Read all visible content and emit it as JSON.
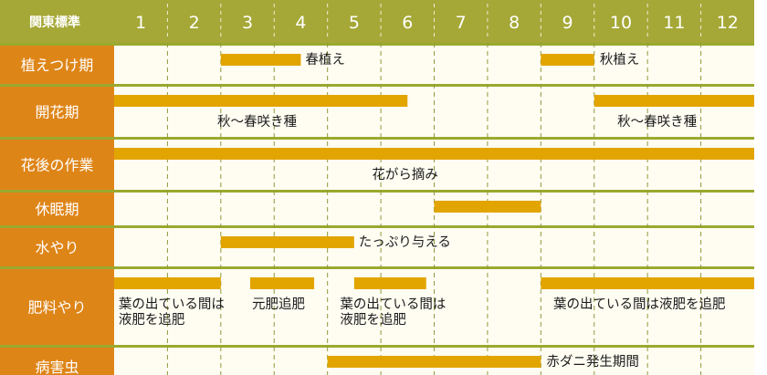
{
  "chart_data": {
    "type": "gantt",
    "corner_label": "関東標準",
    "x_unit": "month",
    "months": [
      "1",
      "2",
      "3",
      "4",
      "5",
      "6",
      "7",
      "8",
      "9",
      "10",
      "11",
      "12"
    ],
    "colors": {
      "header_bg": "#a5a836",
      "header_text": "#ffffff",
      "row_label_bg": "#de8518",
      "row_label_text": "#ffffff",
      "bar": "#e2a500",
      "row_bg": "#fffdf2",
      "separator": "#9aa92e",
      "grid": "#8d9a3a"
    },
    "rows": [
      {
        "label": "植えつけ期",
        "bars": [
          {
            "start": 3,
            "end": 4.5
          },
          {
            "start": 9,
            "end": 10
          }
        ],
        "annotations": [
          {
            "text": "春植え",
            "at_month": 4.55,
            "line": 0
          },
          {
            "text": "秋植え",
            "at_month": 10.07,
            "line": 0
          }
        ]
      },
      {
        "label": "開花期",
        "bars": [
          {
            "start": 1,
            "end": 6.5
          },
          {
            "start": 10,
            "end": 13
          }
        ],
        "annotations": [
          {
            "text": "秋～春咲き種",
            "at_month": 2.9,
            "line": 1
          },
          {
            "text": "秋～春咲き種",
            "at_month": 10.4,
            "line": 1
          }
        ]
      },
      {
        "label": "花後の作業",
        "bars": [
          {
            "start": 1,
            "end": 13
          }
        ],
        "annotations": [
          {
            "text": "花がら摘み",
            "at_month": 5.8,
            "line": 1
          }
        ]
      },
      {
        "label": "休眠期",
        "bars": [
          {
            "start": 7,
            "end": 9
          }
        ],
        "annotations": []
      },
      {
        "label": "水やり",
        "bars": [
          {
            "start": 3,
            "end": 5.5
          }
        ],
        "annotations": [
          {
            "text": "たっぷり与える",
            "at_month": 5.55,
            "line": 0
          }
        ]
      },
      {
        "label": "肥料やり",
        "bars": [
          {
            "start": 1,
            "end": 3
          },
          {
            "start": 3.55,
            "end": 4.75
          },
          {
            "start": 5.5,
            "end": 6.85
          },
          {
            "start": 9,
            "end": 13
          }
        ],
        "annotations": [
          {
            "text": "葉の出ている間は",
            "at_month": 1.05,
            "line": 1
          },
          {
            "text": "液肥を追肥",
            "at_month": 1.05,
            "line": 2
          },
          {
            "text": "元肥追肥",
            "at_month": 3.55,
            "line": 1
          },
          {
            "text": "葉の出ている間は",
            "at_month": 5.2,
            "line": 1
          },
          {
            "text": "液肥を追肥",
            "at_month": 5.2,
            "line": 2
          },
          {
            "text": "葉の出ている間は液肥を追肥",
            "at_month": 9.2,
            "line": 1
          }
        ]
      },
      {
        "label": "病害虫",
        "bars": [
          {
            "start": 5,
            "end": 9
          }
        ],
        "annotations": [
          {
            "text": "赤ダニ発生期間",
            "at_month": 9.07,
            "line": 0
          }
        ]
      }
    ]
  }
}
